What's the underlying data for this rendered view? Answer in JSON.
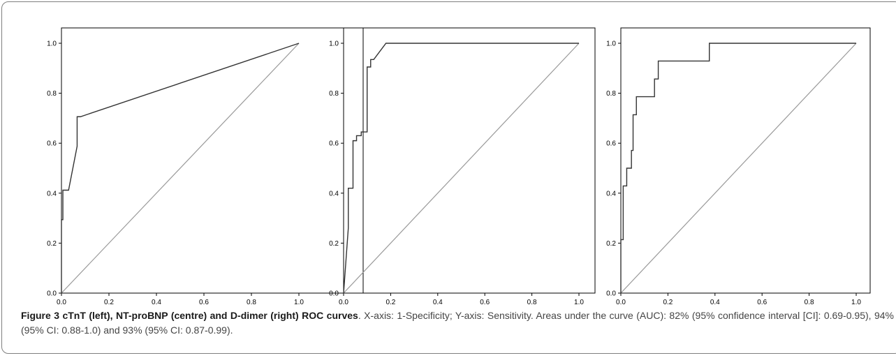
{
  "caption": {
    "label": "Figure 3 cTnT (left), NT-proBNP (centre) and D-dimer (right) ROC curves",
    "text": ". X-axis: 1-Specificity; Y-axis: Sensitivity. Areas under the curve (AUC): 82% (95% confidence interval [CI]: 0.69-0.95), 94% (95% CI: 0.88-1.0) and 93% (95% CI: 0.87-0.99)."
  },
  "colors": {
    "roc_line": "#333333",
    "reference_line": "#999999",
    "axis": "#000000"
  },
  "chart_data": [
    {
      "type": "line",
      "title": "",
      "xlabel": "",
      "ylabel": "",
      "xlim": [
        0,
        1.0
      ],
      "ylim": [
        0,
        1.0
      ],
      "xticks": [
        "0.0",
        "0.2",
        "0.4",
        "0.6",
        "0.8",
        "1.0"
      ],
      "yticks": [
        "0.0",
        "0.2",
        "0.4",
        "0.6",
        "0.8",
        "1.0"
      ],
      "grid": false,
      "series": [
        {
          "x": [
            0,
            0,
            0.006,
            0.006,
            0.03,
            0.066,
            0.066,
            0.08,
            1.0
          ],
          "y": [
            0,
            0.294,
            0.294,
            0.412,
            0.412,
            0.588,
            0.706,
            0.706,
            1.0
          ]
        },
        {
          "x": [
            0,
            1.0
          ],
          "y": [
            0,
            1.0
          ]
        }
      ]
    },
    {
      "type": "line",
      "title": "",
      "xlabel": "",
      "ylabel": "",
      "xlim": [
        0,
        1.0
      ],
      "ylim": [
        0,
        1.0
      ],
      "xticks": [
        "0.0",
        "0.2",
        "0.4",
        "0.6",
        "0.8",
        "1.0"
      ],
      "yticks": [
        "0.0",
        "0.2",
        "0.4",
        "0.6",
        "0.8",
        "1.0"
      ],
      "grid": false,
      "series": [
        {
          "x": [
            0,
            0.02,
            0.02,
            0.04,
            0.04,
            0.055,
            0.055,
            0.075,
            0.075,
            0.1,
            0.1,
            0.115,
            0.115,
            0.128,
            0.128,
            0.18,
            1.0
          ],
          "y": [
            0,
            0.26,
            0.42,
            0.42,
            0.61,
            0.61,
            0.63,
            0.63,
            0.645,
            0.645,
            0.905,
            0.905,
            0.935,
            0.935,
            0.935,
            1.0,
            1.0
          ]
        },
        {
          "x": [
            0,
            1.0
          ],
          "y": [
            0,
            1.0
          ]
        }
      ]
    },
    {
      "type": "line",
      "title": "",
      "xlabel": "",
      "ylabel": "",
      "xlim": [
        0,
        1.0
      ],
      "ylim": [
        0,
        1.0
      ],
      "xticks": [
        "0.0",
        "0.2",
        "0.4",
        "0.6",
        "0.8",
        "1.0"
      ],
      "yticks": [
        "0.0",
        "0.2",
        "0.4",
        "0.6",
        "0.8",
        "1.0"
      ],
      "grid": false,
      "series": [
        {
          "x": [
            0,
            0,
            0.01,
            0.01,
            0.025,
            0.025,
            0.045,
            0.045,
            0.052,
            0.052,
            0.066,
            0.066,
            0.143,
            0.143,
            0.159,
            0.159,
            0.376,
            0.376,
            1.0
          ],
          "y": [
            0,
            0.214,
            0.214,
            0.429,
            0.429,
            0.5,
            0.5,
            0.571,
            0.571,
            0.714,
            0.714,
            0.786,
            0.786,
            0.857,
            0.857,
            0.929,
            0.929,
            1.0,
            1.0
          ]
        },
        {
          "x": [
            0,
            1.0
          ],
          "y": [
            0,
            1.0
          ]
        }
      ]
    }
  ]
}
